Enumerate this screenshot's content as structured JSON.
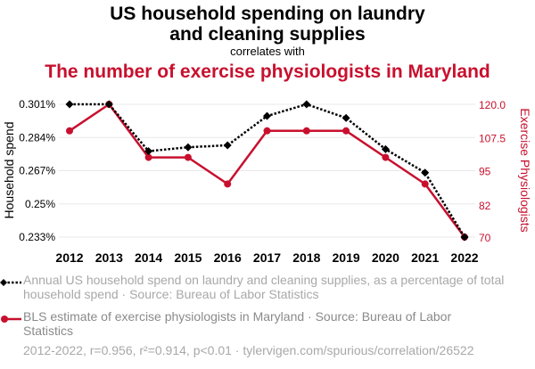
{
  "header": {
    "title_line1": "US household spending on laundry",
    "title_line2": "and cleaning supplies",
    "subtitle": "correlates with",
    "title_series2": "The number of exercise physiologists in Maryland"
  },
  "colors": {
    "series1": "#000000",
    "series2": "#c8102e",
    "grid": "#e8e8e8"
  },
  "chart_data": {
    "type": "line",
    "x": [
      2012,
      2013,
      2014,
      2015,
      2016,
      2017,
      2018,
      2019,
      2020,
      2021,
      2022
    ],
    "xlabels": [
      "2012",
      "2013",
      "2014",
      "2015",
      "2016",
      "2017",
      "2018",
      "2019",
      "2020",
      "2021",
      "2022"
    ],
    "series": [
      {
        "name": "Household spend",
        "axis": "left",
        "style": "dotted",
        "marker": "diamond",
        "values": [
          0.301,
          0.301,
          0.277,
          0.279,
          0.28,
          0.295,
          0.301,
          0.294,
          0.278,
          0.266,
          0.233
        ]
      },
      {
        "name": "Exercise Physiologists",
        "axis": "right",
        "style": "solid",
        "marker": "circle",
        "values": [
          110,
          120,
          100,
          100,
          90,
          110,
          110,
          110,
          100,
          90,
          70
        ]
      }
    ],
    "left_axis": {
      "label": "Household spend",
      "ticks": [
        0.233,
        0.25,
        0.267,
        0.284,
        0.301
      ],
      "tick_labels": [
        "0.233%",
        "0.25%",
        "0.267%",
        "0.284%",
        "0.301%"
      ],
      "range": [
        0.233,
        0.301
      ]
    },
    "right_axis": {
      "label": "Exercise Physiologists",
      "ticks": [
        70,
        82,
        95,
        107.5,
        120
      ],
      "tick_labels": [
        "70",
        "82",
        "95",
        "107.5",
        "120.0"
      ],
      "range": [
        70,
        120
      ]
    },
    "grid": true
  },
  "legend": {
    "series1_text": "Annual US household spend on laundry and cleaning supplies, as a percentage of total household spend · Source: Bureau of Labor Statistics",
    "series2_text": "BLS estimate of exercise physiologists in Maryland · Source: Bureau of Labor Statistics"
  },
  "footer": {
    "text": "2012-2022, r=0.956, r²=0.914, p<0.01 · tylervigen.com/spurious/correlation/26522"
  }
}
